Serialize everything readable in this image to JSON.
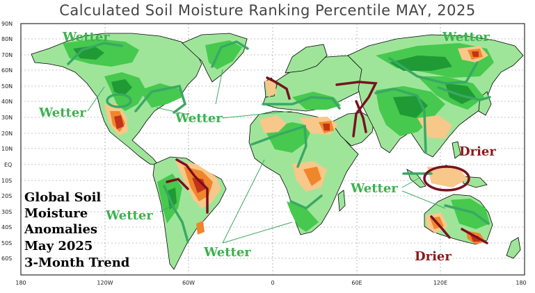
{
  "title": "Calculated Soil Moisture Ranking Percentile MAY, 2025",
  "lat_labels": [
    "90N",
    "80N",
    "70N",
    "60N",
    "50N",
    "40N",
    "30N",
    "20N",
    "10N",
    "EQ",
    "10S",
    "20S",
    "30S",
    "40S",
    "50S",
    "60S"
  ],
  "lon_labels": [
    "180",
    "120W",
    "60W",
    "0",
    "60E",
    "120E",
    "180"
  ],
  "annotations": {
    "wetter": [
      "Wetter",
      "Wetter",
      "Wetter",
      "Wetter",
      "Wetter",
      "Wetter",
      "Wetter"
    ],
    "drier": [
      "Drier",
      "Drier"
    ]
  },
  "side_text": [
    "Global Soil",
    "Moisture",
    "Anomalies",
    "May 2025",
    "3-Month Trend"
  ],
  "colors": {
    "wet_light": "#9ee59a",
    "wet": "#46c94e",
    "wet_dark": "#1f9a35",
    "dry_light": "#f8c78a",
    "dry": "#f0862b",
    "dry_dark": "#c4321a",
    "wetter_text": "#3bb24e",
    "drier_text": "#8b1a1a",
    "wetter_outline": "#3aa864",
    "drier_outline": "#7a1020"
  }
}
